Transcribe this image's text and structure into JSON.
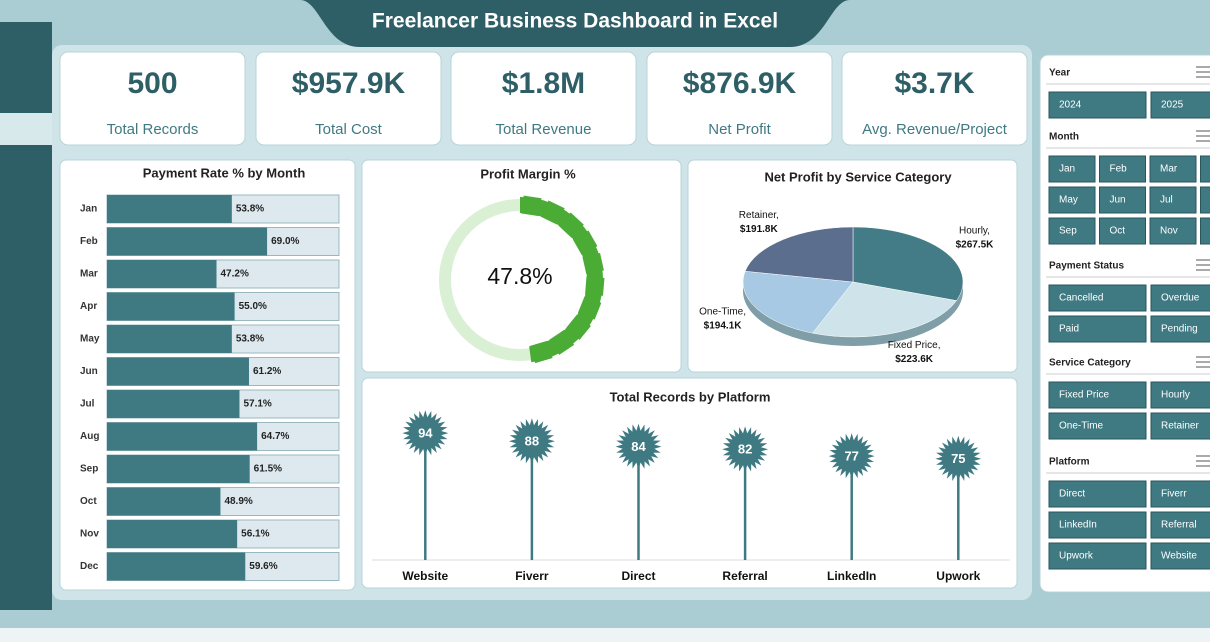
{
  "header": {
    "title": "Freelancer Business Dashboard in Excel"
  },
  "kpis": [
    {
      "value": "500",
      "label": "Total Records"
    },
    {
      "value": "$957.9K",
      "label": "Total Cost"
    },
    {
      "value": "$1.8M",
      "label": "Total Revenue"
    },
    {
      "value": "$876.9K",
      "label": "Net Profit"
    },
    {
      "value": "$3.7K",
      "label": "Avg. Revenue/Project"
    }
  ],
  "chart_data": [
    {
      "type": "bar",
      "orientation": "horizontal",
      "title": "Payment Rate % by Month",
      "categories": [
        "Jan",
        "Feb",
        "Mar",
        "Apr",
        "May",
        "Jun",
        "Jul",
        "Aug",
        "Sep",
        "Oct",
        "Nov",
        "Dec"
      ],
      "values": [
        53.8,
        69.0,
        47.2,
        55.0,
        53.8,
        61.2,
        57.1,
        64.7,
        61.5,
        48.9,
        56.1,
        59.6
      ],
      "value_labels": [
        "53.8%",
        "69.0%",
        "47.2%",
        "55.0%",
        "53.8%",
        "61.2%",
        "57.1%",
        "64.7%",
        "61.5%",
        "48.9%",
        "56.1%",
        "59.6%"
      ],
      "xlim": [
        0,
        100
      ],
      "color": "#3f7a83",
      "track_color": "#dde9ee"
    },
    {
      "type": "donut",
      "title": "Profit Margin %",
      "values": [
        47.8
      ],
      "value_labels": [
        "47.8%"
      ],
      "color": "#4aab35",
      "track_color": "#d9f0d4"
    },
    {
      "type": "pie",
      "title": "Net Profit by Service Category",
      "categories": [
        "Hourly,",
        "Fixed Price,",
        "One-Time,",
        "Retainer,"
      ],
      "values": [
        267.5,
        223.6,
        194.1,
        191.8
      ],
      "value_labels": [
        "$267.5K",
        "$223.6K",
        "$194.1K",
        "$191.8K"
      ],
      "colors": [
        "#437c86",
        "#cfe4ea",
        "#a8c9e3",
        "#5c6e8e"
      ]
    },
    {
      "type": "lollipop",
      "title": "Total Records by Platform",
      "categories": [
        "Website",
        "Fiverr",
        "Direct",
        "Referral",
        "LinkedIn",
        "Upwork"
      ],
      "values": [
        94,
        88,
        84,
        82,
        77,
        75
      ],
      "color": "#3f7a83"
    }
  ],
  "slicers": [
    {
      "title": "Year",
      "items": [
        "2024",
        "2025"
      ]
    },
    {
      "title": "Month",
      "items": [
        "Jan",
        "Feb",
        "Mar",
        null,
        "May",
        "Jun",
        "Jul",
        null,
        "Sep",
        "Oct",
        "Nov",
        null
      ]
    },
    {
      "title": "Payment Status",
      "items": [
        "Cancelled",
        "Overdue",
        "Paid",
        "Pending"
      ]
    },
    {
      "title": "Service Category",
      "items": [
        "Fixed Price",
        "Hourly",
        "One-Time",
        "Retainer"
      ]
    },
    {
      "title": "Platform",
      "items": [
        "Direct",
        "Fiverr",
        "LinkedIn",
        "Referral",
        "Upwork",
        "Website"
      ]
    }
  ]
}
